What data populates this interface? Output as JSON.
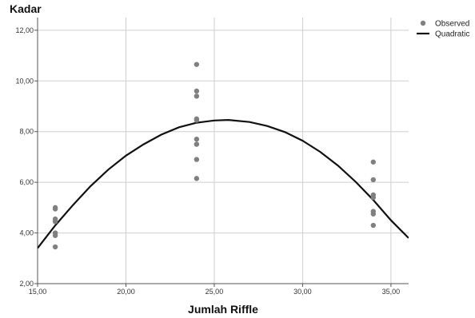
{
  "chart_data": {
    "type": "scatter",
    "title": "",
    "xlabel": "Jumlah Riffle",
    "ylabel": "Kadar",
    "xlim": [
      15,
      36
    ],
    "ylim": [
      2,
      12.5
    ],
    "xticks": [
      15,
      20,
      25,
      30,
      35
    ],
    "yticks": [
      2,
      4,
      6,
      8,
      10,
      12
    ],
    "xtick_labels": [
      "15,00",
      "20,00",
      "25,00",
      "30,00",
      "35,00"
    ],
    "ytick_labels": [
      "2,00",
      "4,00",
      "6,00",
      "8,00",
      "10,00",
      "12,00"
    ],
    "grid": true,
    "legend_position": "top-right",
    "series": [
      {
        "name": "Observed",
        "kind": "points",
        "color": "#808080",
        "points": [
          {
            "x": 16,
            "y": 5.0
          },
          {
            "x": 16,
            "y": 4.95
          },
          {
            "x": 16,
            "y": 4.55
          },
          {
            "x": 16,
            "y": 4.45
          },
          {
            "x": 16,
            "y": 4.0
          },
          {
            "x": 16,
            "y": 3.9
          },
          {
            "x": 16,
            "y": 3.45
          },
          {
            "x": 24,
            "y": 10.65
          },
          {
            "x": 24,
            "y": 9.6
          },
          {
            "x": 24,
            "y": 9.4
          },
          {
            "x": 24,
            "y": 8.5
          },
          {
            "x": 24,
            "y": 8.45
          },
          {
            "x": 24,
            "y": 7.7
          },
          {
            "x": 24,
            "y": 7.5
          },
          {
            "x": 24,
            "y": 6.9
          },
          {
            "x": 24,
            "y": 6.15
          },
          {
            "x": 34,
            "y": 6.8
          },
          {
            "x": 34,
            "y": 6.1
          },
          {
            "x": 34,
            "y": 5.5
          },
          {
            "x": 34,
            "y": 5.4
          },
          {
            "x": 34,
            "y": 4.85
          },
          {
            "x": 34,
            "y": 4.75
          },
          {
            "x": 34,
            "y": 4.3
          }
        ]
      },
      {
        "name": "Quadratic",
        "kind": "curve",
        "color": "#111111",
        "points": [
          {
            "x": 15,
            "y": 3.4
          },
          {
            "x": 16,
            "y": 4.3
          },
          {
            "x": 17,
            "y": 5.1
          },
          {
            "x": 18,
            "y": 5.85
          },
          {
            "x": 19,
            "y": 6.5
          },
          {
            "x": 20,
            "y": 7.05
          },
          {
            "x": 21,
            "y": 7.5
          },
          {
            "x": 22,
            "y": 7.88
          },
          {
            "x": 23,
            "y": 8.17
          },
          {
            "x": 24,
            "y": 8.35
          },
          {
            "x": 25,
            "y": 8.44
          },
          {
            "x": 25.8,
            "y": 8.46
          },
          {
            "x": 27,
            "y": 8.38
          },
          {
            "x": 28,
            "y": 8.22
          },
          {
            "x": 29,
            "y": 7.98
          },
          {
            "x": 30,
            "y": 7.64
          },
          {
            "x": 31,
            "y": 7.2
          },
          {
            "x": 32,
            "y": 6.66
          },
          {
            "x": 33,
            "y": 6.02
          },
          {
            "x": 34,
            "y": 5.3
          },
          {
            "x": 35,
            "y": 4.5
          },
          {
            "x": 36,
            "y": 3.8
          }
        ]
      }
    ]
  }
}
